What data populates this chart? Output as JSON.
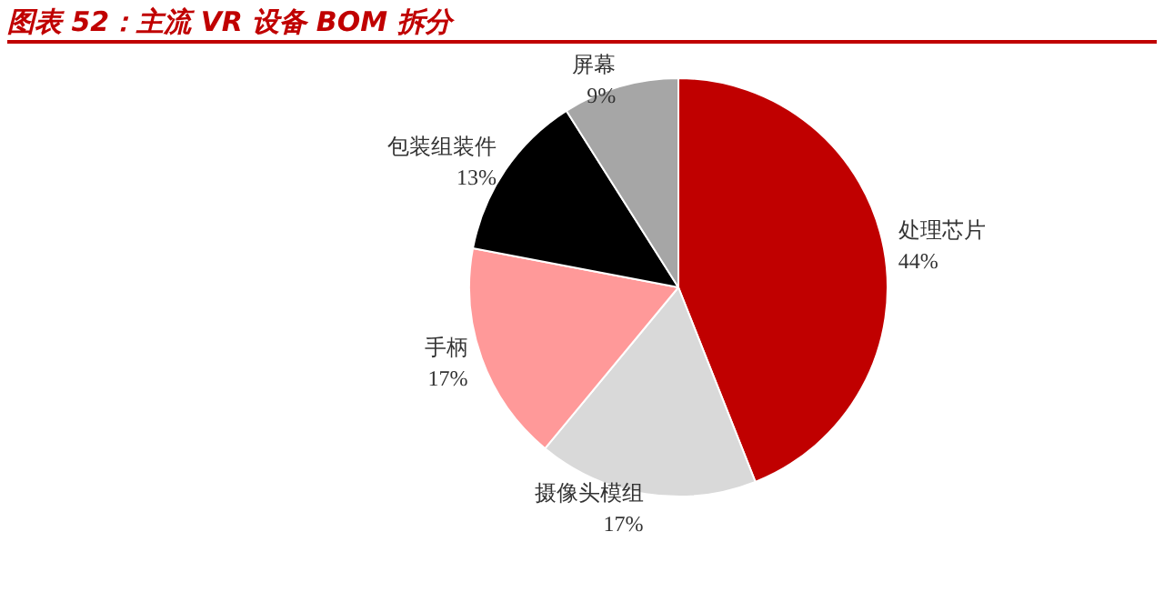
{
  "chart_data": {
    "type": "pie",
    "title": "图表 52：主流 VR 设备 BOM 拆分",
    "categories": [
      "处理芯片",
      "摄像头模组",
      "手柄",
      "包装组装件",
      "屏幕"
    ],
    "values": [
      44,
      17,
      17,
      13,
      9
    ],
    "value_labels": [
      "44%",
      "17%",
      "17%",
      "13%",
      "9%"
    ],
    "colors": [
      "#c00000",
      "#d9d9d9",
      "#ff9999",
      "#000000",
      "#a6a6a6"
    ],
    "legend": false
  }
}
